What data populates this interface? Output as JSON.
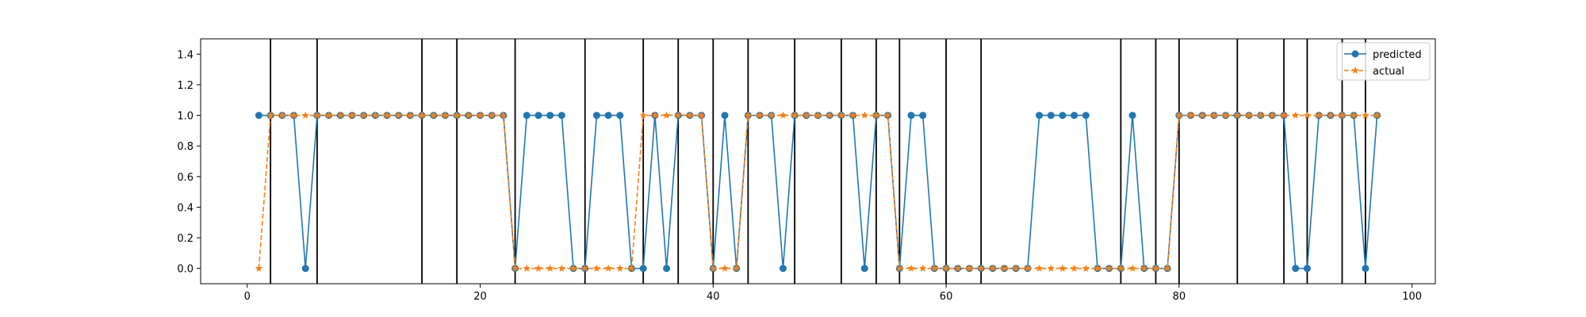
{
  "chart_data": {
    "type": "line",
    "title": "",
    "xlabel": "",
    "ylabel": "",
    "xlim": [
      -4,
      102
    ],
    "ylim": [
      -0.1,
      1.5
    ],
    "x_ticks": [
      0,
      20,
      40,
      60,
      80,
      100
    ],
    "y_ticks": [
      0.0,
      0.2,
      0.4,
      0.6,
      0.8,
      1.0,
      1.2,
      1.4
    ],
    "x_tick_labels": [
      "0",
      "20",
      "40",
      "60",
      "80",
      "100"
    ],
    "y_tick_labels": [
      "0.0",
      "0.2",
      "0.4",
      "0.6",
      "0.8",
      "1.0",
      "1.2",
      "1.4"
    ],
    "grid": false,
    "legend_position": "top-right",
    "x": [
      1,
      2,
      3,
      4,
      5,
      6,
      7,
      8,
      9,
      10,
      11,
      12,
      13,
      14,
      15,
      16,
      17,
      18,
      19,
      20,
      21,
      22,
      23,
      24,
      25,
      26,
      27,
      28,
      29,
      30,
      31,
      32,
      33,
      34,
      35,
      36,
      37,
      38,
      39,
      40,
      41,
      42,
      43,
      44,
      45,
      46,
      47,
      48,
      49,
      50,
      51,
      52,
      53,
      54,
      55,
      56,
      57,
      58,
      59,
      60,
      61,
      62,
      63,
      64,
      65,
      66,
      67,
      68,
      69,
      70,
      71,
      72,
      73,
      74,
      75,
      76,
      77,
      78,
      79,
      80,
      81,
      82,
      83,
      84,
      85,
      86,
      87,
      88,
      89,
      90,
      91,
      92,
      93,
      94,
      95,
      96,
      97
    ],
    "series": [
      {
        "name": "predicted",
        "color": "#1f77b4",
        "marker": "circle",
        "line_style": "solid",
        "values": [
          1,
          1,
          1,
          1,
          0,
          1,
          1,
          1,
          1,
          1,
          1,
          1,
          1,
          1,
          1,
          1,
          1,
          1,
          1,
          1,
          1,
          1,
          0,
          1,
          1,
          1,
          1,
          0,
          0,
          1,
          1,
          1,
          0,
          0,
          1,
          0,
          1,
          1,
          1,
          0,
          1,
          0,
          1,
          1,
          1,
          0,
          1,
          1,
          1,
          1,
          1,
          1,
          0,
          1,
          1,
          0,
          1,
          1,
          0,
          0,
          0,
          0,
          0,
          0,
          0,
          0,
          0,
          1,
          1,
          1,
          1,
          1,
          0,
          0,
          0,
          1,
          0,
          0,
          0,
          1,
          1,
          1,
          1,
          1,
          1,
          1,
          1,
          1,
          1,
          0,
          0,
          1,
          1,
          1,
          1,
          0,
          1
        ]
      },
      {
        "name": "actual",
        "color": "#ff7f0e",
        "marker": "star",
        "line_style": "dashed",
        "values": [
          0,
          1,
          1,
          1,
          1,
          1,
          1,
          1,
          1,
          1,
          1,
          1,
          1,
          1,
          1,
          1,
          1,
          1,
          1,
          1,
          1,
          1,
          0,
          0,
          0,
          0,
          0,
          0,
          0,
          0,
          0,
          0,
          0,
          1,
          1,
          1,
          1,
          1,
          1,
          0,
          0,
          0,
          1,
          1,
          1,
          1,
          1,
          1,
          1,
          1,
          1,
          1,
          1,
          1,
          1,
          0,
          0,
          0,
          0,
          0,
          0,
          0,
          0,
          0,
          0,
          0,
          0,
          0,
          0,
          0,
          0,
          0,
          0,
          0,
          0,
          0,
          0,
          0,
          0,
          1,
          1,
          1,
          1,
          1,
          1,
          1,
          1,
          1,
          1,
          1,
          1,
          1,
          1,
          1,
          1,
          1,
          1
        ]
      }
    ],
    "vertical_lines": [
      2,
      6,
      15,
      18,
      23,
      29,
      34,
      37,
      40,
      43,
      47,
      51,
      54,
      56,
      60,
      63,
      75,
      78,
      80,
      85,
      89,
      91,
      94,
      96
    ]
  }
}
